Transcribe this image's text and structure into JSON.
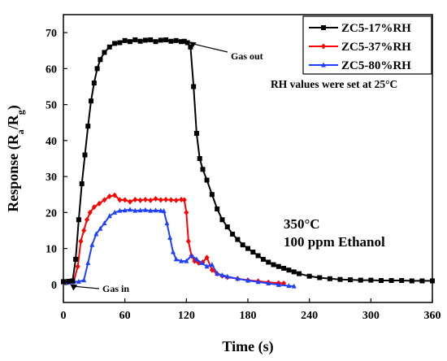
{
  "chart_data": {
    "type": "line",
    "xlabel": "Time (s)",
    "ylabel_main": "Response (R",
    "ylabel_sub1": "a",
    "ylabel_mid": "/R",
    "ylabel_sub2": "g",
    "ylabel_end": ")",
    "xlim": [
      0,
      360
    ],
    "ylim": [
      -5,
      75
    ],
    "xticks": [
      0,
      60,
      120,
      180,
      240,
      300,
      360
    ],
    "yticks": [
      0,
      10,
      20,
      30,
      40,
      50,
      60,
      70
    ],
    "legend_position": "top-right",
    "annotations": {
      "gas_out": "Gas out",
      "gas_in": "Gas in",
      "rh_note": "RH values were set at 25°C",
      "temperature": "350°C",
      "concentration": "100 ppm Ethanol"
    },
    "series": [
      {
        "name": "ZC5-17%RH",
        "color": "#000000",
        "marker": "square",
        "x": [
          0,
          5,
          9,
          12,
          15,
          18,
          21,
          24,
          27,
          30,
          33,
          36,
          40,
          45,
          50,
          55,
          60,
          65,
          70,
          75,
          80,
          85,
          90,
          95,
          100,
          105,
          110,
          115,
          118,
          121,
          124,
          127,
          130,
          133,
          136,
          140,
          145,
          150,
          155,
          160,
          165,
          170,
          175,
          180,
          185,
          190,
          195,
          200,
          205,
          210,
          215,
          220,
          225,
          230,
          240,
          250,
          260,
          270,
          280,
          290,
          300,
          310,
          320,
          330,
          340,
          350,
          360
        ],
        "y": [
          0.8,
          0.9,
          1.0,
          7,
          18,
          28,
          36,
          44,
          51,
          56,
          60,
          62.5,
          64.5,
          66,
          67,
          67.2,
          67.8,
          67.5,
          68,
          67.6,
          67.9,
          68,
          67.5,
          67.9,
          68,
          67.6,
          67.8,
          67.5,
          67.6,
          67.2,
          66,
          55,
          42,
          35,
          32,
          29,
          25,
          21,
          18,
          16,
          14,
          12.5,
          11,
          10,
          9,
          8,
          7,
          6.2,
          5.5,
          5,
          4.5,
          4,
          3.5,
          3,
          2.3,
          1.9,
          1.6,
          1.4,
          1.3,
          1.2,
          1.2,
          1.1,
          1.1,
          1.1,
          1.0,
          1.0,
          1.0
        ]
      },
      {
        "name": "ZC5-37%RH",
        "color": "#ff0000",
        "marker": "diamond",
        "x": [
          0,
          5,
          10,
          14,
          17,
          20,
          23,
          26,
          30,
          35,
          40,
          45,
          50,
          55,
          60,
          65,
          70,
          75,
          80,
          85,
          90,
          95,
          100,
          105,
          110,
          115,
          118,
          120,
          122,
          125,
          128,
          132,
          136,
          140,
          145,
          150,
          155,
          160,
          170,
          180,
          190,
          200,
          210,
          215
        ],
        "y": [
          0.5,
          0.6,
          0.8,
          5,
          12,
          15,
          18,
          20,
          21.5,
          22.5,
          23.5,
          24.5,
          24.8,
          23.5,
          23.5,
          23,
          23.6,
          23.4,
          23.6,
          23.4,
          23.8,
          23.5,
          23.6,
          23.5,
          23.4,
          23.6,
          23.5,
          20,
          12,
          8,
          6.5,
          6,
          6.2,
          7.5,
          4,
          3,
          2.4,
          2,
          1.6,
          1.2,
          0.9,
          0.6,
          0.4,
          0.3
        ]
      },
      {
        "name": "ZC5-80%RH",
        "color": "#1f3fff",
        "marker": "triangle",
        "x": [
          0,
          5,
          10,
          15,
          20,
          24,
          28,
          32,
          36,
          40,
          45,
          50,
          55,
          60,
          65,
          70,
          75,
          80,
          85,
          90,
          95,
          98,
          101,
          104,
          107,
          110,
          115,
          120,
          125,
          130,
          135,
          140,
          145,
          150,
          155,
          160,
          170,
          180,
          190,
          200,
          210,
          220,
          225
        ],
        "y": [
          0.6,
          0.6,
          0.7,
          0.8,
          1.2,
          6,
          11,
          14,
          15.5,
          17,
          19,
          20,
          20.5,
          20.6,
          20.8,
          20.5,
          20.6,
          20.7,
          20.5,
          20.6,
          20.5,
          20.4,
          17,
          13,
          9,
          7,
          6.5,
          6.5,
          8,
          7,
          6,
          5,
          5.5,
          3,
          2.6,
          2.2,
          1.6,
          1.1,
          0.7,
          0.3,
          -0.1,
          -0.4,
          -0.5
        ]
      }
    ]
  }
}
